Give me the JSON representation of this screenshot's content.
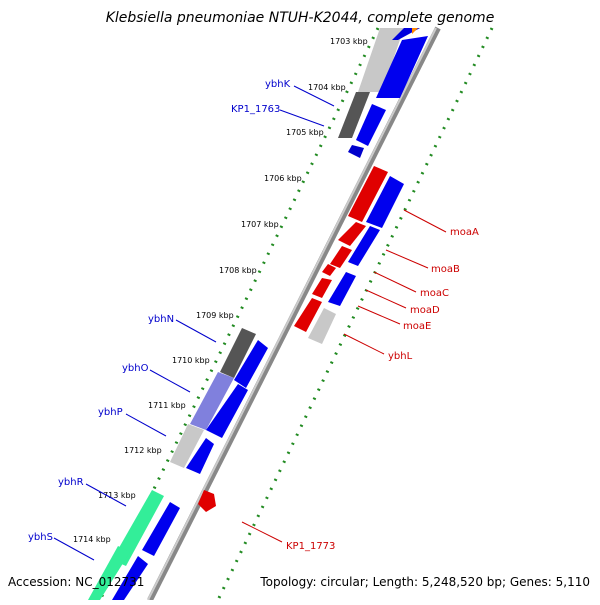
{
  "title": "Klebsiella pneumoniae NTUH-K2044, complete genome",
  "footer": {
    "accession": "Accession: NC_012731",
    "topology": "Topology: circular; Length: 5,248,520 bp; Genes: 5,110"
  },
  "ticks": [
    "1703 kbp",
    "1704 kbp",
    "1705 kbp",
    "1706 kbp",
    "1707 kbp",
    "1708 kbp",
    "1709 kbp",
    "1710 kbp",
    "1711 kbp",
    "1712 kbp",
    "1713 kbp",
    "1714 kbp"
  ],
  "genes_left": [
    "ybhK",
    "KP1_1763",
    "ybhN",
    "ybhO",
    "ybhP",
    "ybhR",
    "ybhS"
  ],
  "genes_right": [
    "moaA",
    "moaB",
    "moaC",
    "moaD",
    "moaE",
    "ybhL",
    "KP1_1773"
  ],
  "colors": {
    "forward_feature": "#cc0000",
    "reverse_feature": "#0000cc",
    "backbone": "#888888",
    "tick_green": "#228b22"
  }
}
